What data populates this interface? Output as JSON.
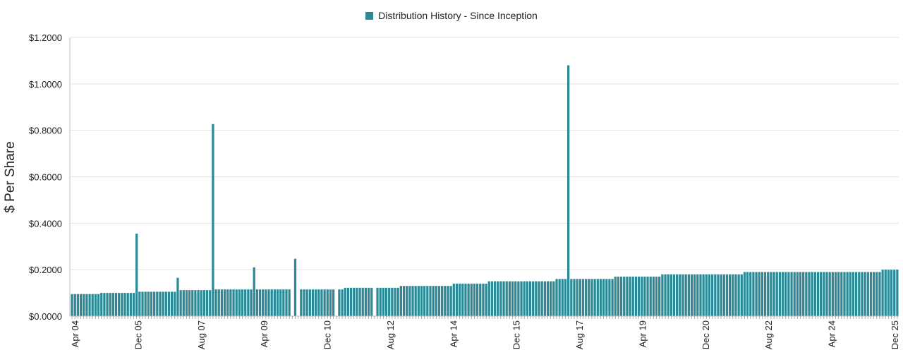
{
  "chart_data": {
    "type": "bar",
    "legend": "Distribution History - Since Inception",
    "ylabel": "$ Per Share",
    "ylim": [
      0,
      1.2
    ],
    "yticks": [
      "$0.0000",
      "$0.2000",
      "$0.4000",
      "$0.6000",
      "$0.8000",
      "$1.0000",
      "$1.2000"
    ],
    "xtick_labels": [
      "Apr 04",
      "Dec 05",
      "Aug 07",
      "Apr 09",
      "Dec 10",
      "Aug 12",
      "Apr 14",
      "Dec 15",
      "Aug 17",
      "Apr 19",
      "Dec 20",
      "Aug 22",
      "Apr 24",
      "Dec 25"
    ],
    "series": [
      {
        "name": "Distribution History - Since Inception",
        "color": "#2b8a96",
        "values": [
          0.095,
          0.095,
          0.095,
          0.095,
          0.095,
          0.095,
          0.095,
          0.095,
          0.095,
          0.095,
          0.1,
          0.1,
          0.1,
          0.1,
          0.1,
          0.1,
          0.1,
          0.1,
          0.1,
          0.1,
          0.1,
          0.1,
          0.355,
          0.105,
          0.105,
          0.105,
          0.105,
          0.105,
          0.105,
          0.105,
          0.105,
          0.105,
          0.105,
          0.105,
          0.105,
          0.105,
          0.165,
          0.112,
          0.112,
          0.112,
          0.112,
          0.112,
          0.112,
          0.112,
          0.112,
          0.112,
          0.112,
          0.112,
          0.827,
          0.115,
          0.115,
          0.115,
          0.115,
          0.115,
          0.115,
          0.115,
          0.115,
          0.115,
          0.115,
          0.115,
          0.115,
          0.115,
          0.21,
          0.115,
          0.115,
          0.115,
          0.115,
          0.115,
          0.115,
          0.115,
          0.115,
          0.115,
          0.115,
          0.115,
          0.115,
          0.0,
          0.247,
          0.0,
          0.115,
          0.115,
          0.115,
          0.115,
          0.115,
          0.115,
          0.115,
          0.115,
          0.115,
          0.115,
          0.115,
          0.115,
          0.0,
          0.115,
          0.115,
          0.122,
          0.122,
          0.122,
          0.122,
          0.122,
          0.122,
          0.122,
          0.122,
          0.122,
          0.122,
          0.0,
          0.122,
          0.122,
          0.122,
          0.122,
          0.122,
          0.122,
          0.122,
          0.122,
          0.13,
          0.13,
          0.13,
          0.13,
          0.13,
          0.13,
          0.13,
          0.13,
          0.13,
          0.13,
          0.13,
          0.13,
          0.13,
          0.13,
          0.13,
          0.13,
          0.13,
          0.13,
          0.14,
          0.14,
          0.14,
          0.14,
          0.14,
          0.14,
          0.14,
          0.14,
          0.14,
          0.14,
          0.14,
          0.14,
          0.15,
          0.15,
          0.15,
          0.15,
          0.15,
          0.15,
          0.15,
          0.15,
          0.15,
          0.15,
          0.15,
          0.15,
          0.15,
          0.15,
          0.15,
          0.15,
          0.15,
          0.15,
          0.15,
          0.15,
          0.15,
          0.15,
          0.15,
          0.16,
          0.16,
          0.16,
          0.16,
          1.08,
          0.16,
          0.16,
          0.16,
          0.16,
          0.16,
          0.16,
          0.16,
          0.16,
          0.16,
          0.16,
          0.16,
          0.16,
          0.16,
          0.16,
          0.16,
          0.17,
          0.17,
          0.17,
          0.17,
          0.17,
          0.17,
          0.17,
          0.17,
          0.17,
          0.17,
          0.17,
          0.17,
          0.17,
          0.17,
          0.17,
          0.17,
          0.18,
          0.18,
          0.18,
          0.18,
          0.18,
          0.18,
          0.18,
          0.18,
          0.18,
          0.18,
          0.18,
          0.18,
          0.18,
          0.18,
          0.18,
          0.18,
          0.18,
          0.18,
          0.18,
          0.18,
          0.18,
          0.18,
          0.18,
          0.18,
          0.18,
          0.18,
          0.18,
          0.18,
          0.19,
          0.19,
          0.19,
          0.19,
          0.19,
          0.19,
          0.19,
          0.19,
          0.19,
          0.19,
          0.19,
          0.19,
          0.19,
          0.19,
          0.19,
          0.19,
          0.19,
          0.19,
          0.19,
          0.19,
          0.19,
          0.19,
          0.19,
          0.19,
          0.19,
          0.19,
          0.19,
          0.19,
          0.19,
          0.19,
          0.19,
          0.19,
          0.19,
          0.19,
          0.19,
          0.19,
          0.19,
          0.19,
          0.19,
          0.19,
          0.19,
          0.19,
          0.19,
          0.19,
          0.19,
          0.19,
          0.19,
          0.2,
          0.2,
          0.2,
          0.2,
          0.2,
          0.2
        ]
      }
    ],
    "grid": true
  }
}
